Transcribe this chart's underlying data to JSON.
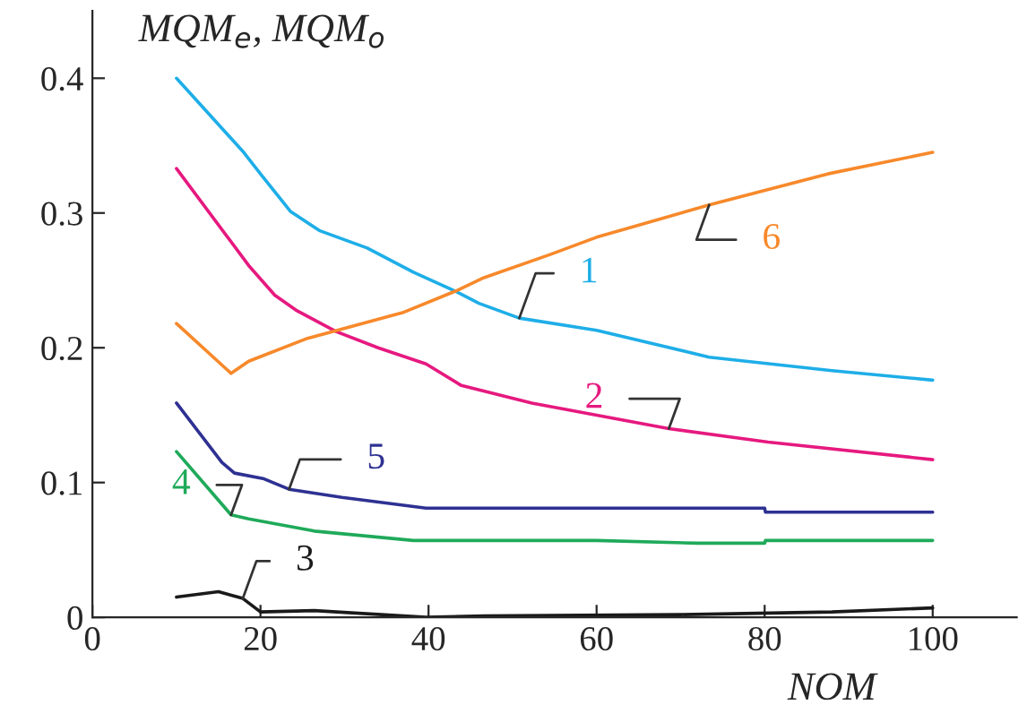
{
  "chart_data": {
    "type": "line",
    "xlabel": "NOM",
    "ylabel": "MQM$_{e}$, MQM$_{o}$",
    "xlim": [
      0,
      110
    ],
    "ylim": [
      0,
      0.45
    ],
    "xticks": [
      0,
      20,
      40,
      60,
      80,
      100
    ],
    "yticks": [
      0,
      0.1,
      0.2,
      0.3,
      0.4
    ],
    "grid": false,
    "legend": false,
    "marker": "none",
    "line_style": "solid",
    "series": [
      {
        "name": "1",
        "color": "#1eaee8",
        "x": [
          10,
          18,
          20,
          23.6,
          27,
          32.7,
          38.2,
          43.2,
          46,
          50.8,
          60,
          73.4,
          88,
          100
        ],
        "values": [
          0.4,
          0.345,
          0.329,
          0.301,
          0.287,
          0.274,
          0.256,
          0.242,
          0.233,
          0.222,
          0.213,
          0.193,
          0.183,
          0.176
        ]
      },
      {
        "name": "2",
        "color": "#e6197f",
        "x": [
          10,
          18.6,
          21.7,
          24.2,
          29,
          34,
          39.7,
          43.9,
          52.3,
          68.6,
          80.4,
          100
        ],
        "values": [
          0.333,
          0.261,
          0.239,
          0.228,
          0.212,
          0.2,
          0.188,
          0.172,
          0.159,
          0.14,
          0.13,
          0.117
        ]
      },
      {
        "name": "3",
        "color": "#1a1a1a",
        "x": [
          10,
          15,
          17.9,
          20,
          26.4,
          39.7,
          46.6,
          70,
          88,
          100
        ],
        "values": [
          0.015,
          0.019,
          0.014,
          0.004,
          0.005,
          0,
          0.001,
          0.002,
          0.004,
          0.007
        ]
      },
      {
        "name": "4",
        "color": "#1faa5a",
        "x": [
          10,
          16.5,
          18.6,
          26.4,
          38.2,
          60,
          72,
          80,
          80.1,
          100
        ],
        "values": [
          0.123,
          0.076,
          0.073,
          0.064,
          0.057,
          0.057,
          0.055,
          0.055,
          0.057,
          0.057
        ]
      },
      {
        "name": "5",
        "color": "#2e3192",
        "x": [
          10,
          15.4,
          16.9,
          20.3,
          23.4,
          29.7,
          39.7,
          60,
          80,
          80.1,
          100
        ],
        "values": [
          0.159,
          0.115,
          0.107,
          0.103,
          0.095,
          0.089,
          0.081,
          0.081,
          0.081,
          0.078,
          0.078
        ]
      },
      {
        "name": "6",
        "color": "#f7892b",
        "x": [
          10,
          16.5,
          18.6,
          25.6,
          36.9,
          43.2,
          46.6,
          54.4,
          60,
          73.4,
          87.5,
          100
        ],
        "values": [
          0.218,
          0.181,
          0.19,
          0.207,
          0.226,
          0.242,
          0.252,
          0.269,
          0.282,
          0.306,
          0.329,
          0.345
        ]
      }
    ]
  }
}
